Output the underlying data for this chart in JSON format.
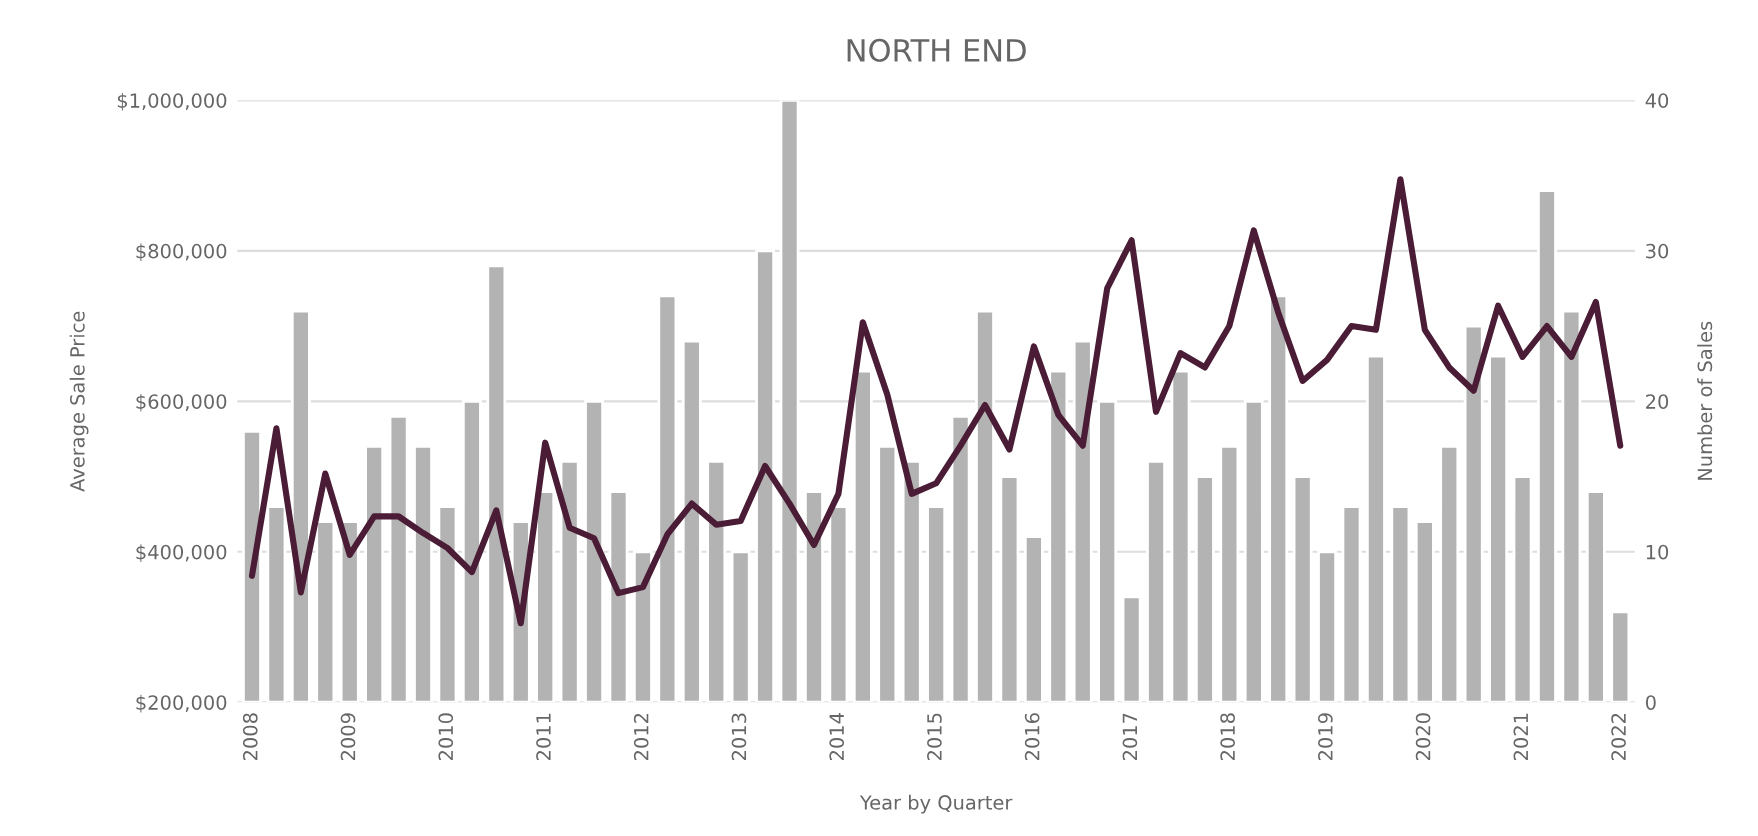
{
  "chart_data": {
    "type": "bar",
    "title": "NORTH END",
    "xlabel": "Year by Quarter",
    "ylabel": "Average Sale Price",
    "y2label": "Number of Sales",
    "categories": [
      "2008",
      null,
      null,
      null,
      "2009",
      null,
      null,
      null,
      "2010",
      null,
      null,
      null,
      "2011",
      null,
      null,
      null,
      "2012",
      null,
      null,
      null,
      "2013",
      null,
      null,
      null,
      "2014",
      null,
      null,
      null,
      "2015",
      null,
      null,
      null,
      "2016",
      null,
      null,
      null,
      "2017",
      null,
      null,
      null,
      "2018",
      null,
      null,
      null,
      "2019",
      null,
      null,
      null,
      "2020",
      null,
      null,
      null,
      "2021",
      null,
      null,
      null,
      "2022"
    ],
    "series": [
      {
        "axis": "y2",
        "color": "#b3b3b3",
        "values": [
          18,
          13,
          26,
          12,
          12,
          17,
          19,
          17,
          13,
          20,
          29,
          12,
          14,
          16,
          20,
          14,
          10,
          27,
          24,
          16,
          10,
          30,
          40,
          14,
          13,
          22,
          17,
          16,
          13,
          19,
          26,
          15,
          11,
          22,
          24,
          20,
          7,
          16,
          22,
          15,
          17,
          20,
          27,
          15,
          10,
          13,
          23,
          13,
          12,
          17,
          25,
          23,
          15,
          34,
          26,
          14,
          6
        ]
      },
      {
        "type": "line",
        "axis": "y",
        "color": "#4a1c35",
        "values": [
          368000,
          564000,
          346000,
          504000,
          396000,
          447000,
          447000,
          425000,
          405000,
          373000,
          455000,
          305000,
          545000,
          432000,
          418000,
          345000,
          353000,
          423000,
          464000,
          436000,
          441000,
          514000,
          464000,
          409000,
          477000,
          705000,
          609000,
          477000,
          491000,
          541000,
          595000,
          536000,
          673000,
          582000,
          541000,
          750000,
          814000,
          586000,
          664000,
          645000,
          700000,
          827000,
          718000,
          627000,
          655000,
          700000,
          695000,
          895000,
          695000,
          645000,
          614000,
          727000,
          659000,
          700000,
          659000,
          732000,
          541000
        ]
      }
    ],
    "ylim": [
      200000,
      1000000
    ],
    "yticks": [
      {
        "value": 200000,
        "label": "$200,000"
      },
      {
        "value": 400000,
        "label": "$400,000"
      },
      {
        "value": 600000,
        "label": "$600,000"
      },
      {
        "value": 800000,
        "label": "$800,000"
      },
      {
        "value": 1000000,
        "label": "$1,000,000"
      }
    ],
    "y2lim": [
      0,
      40
    ],
    "y2ticks": [
      0,
      10,
      20,
      30,
      40
    ],
    "grid": "y",
    "legend": false
  }
}
